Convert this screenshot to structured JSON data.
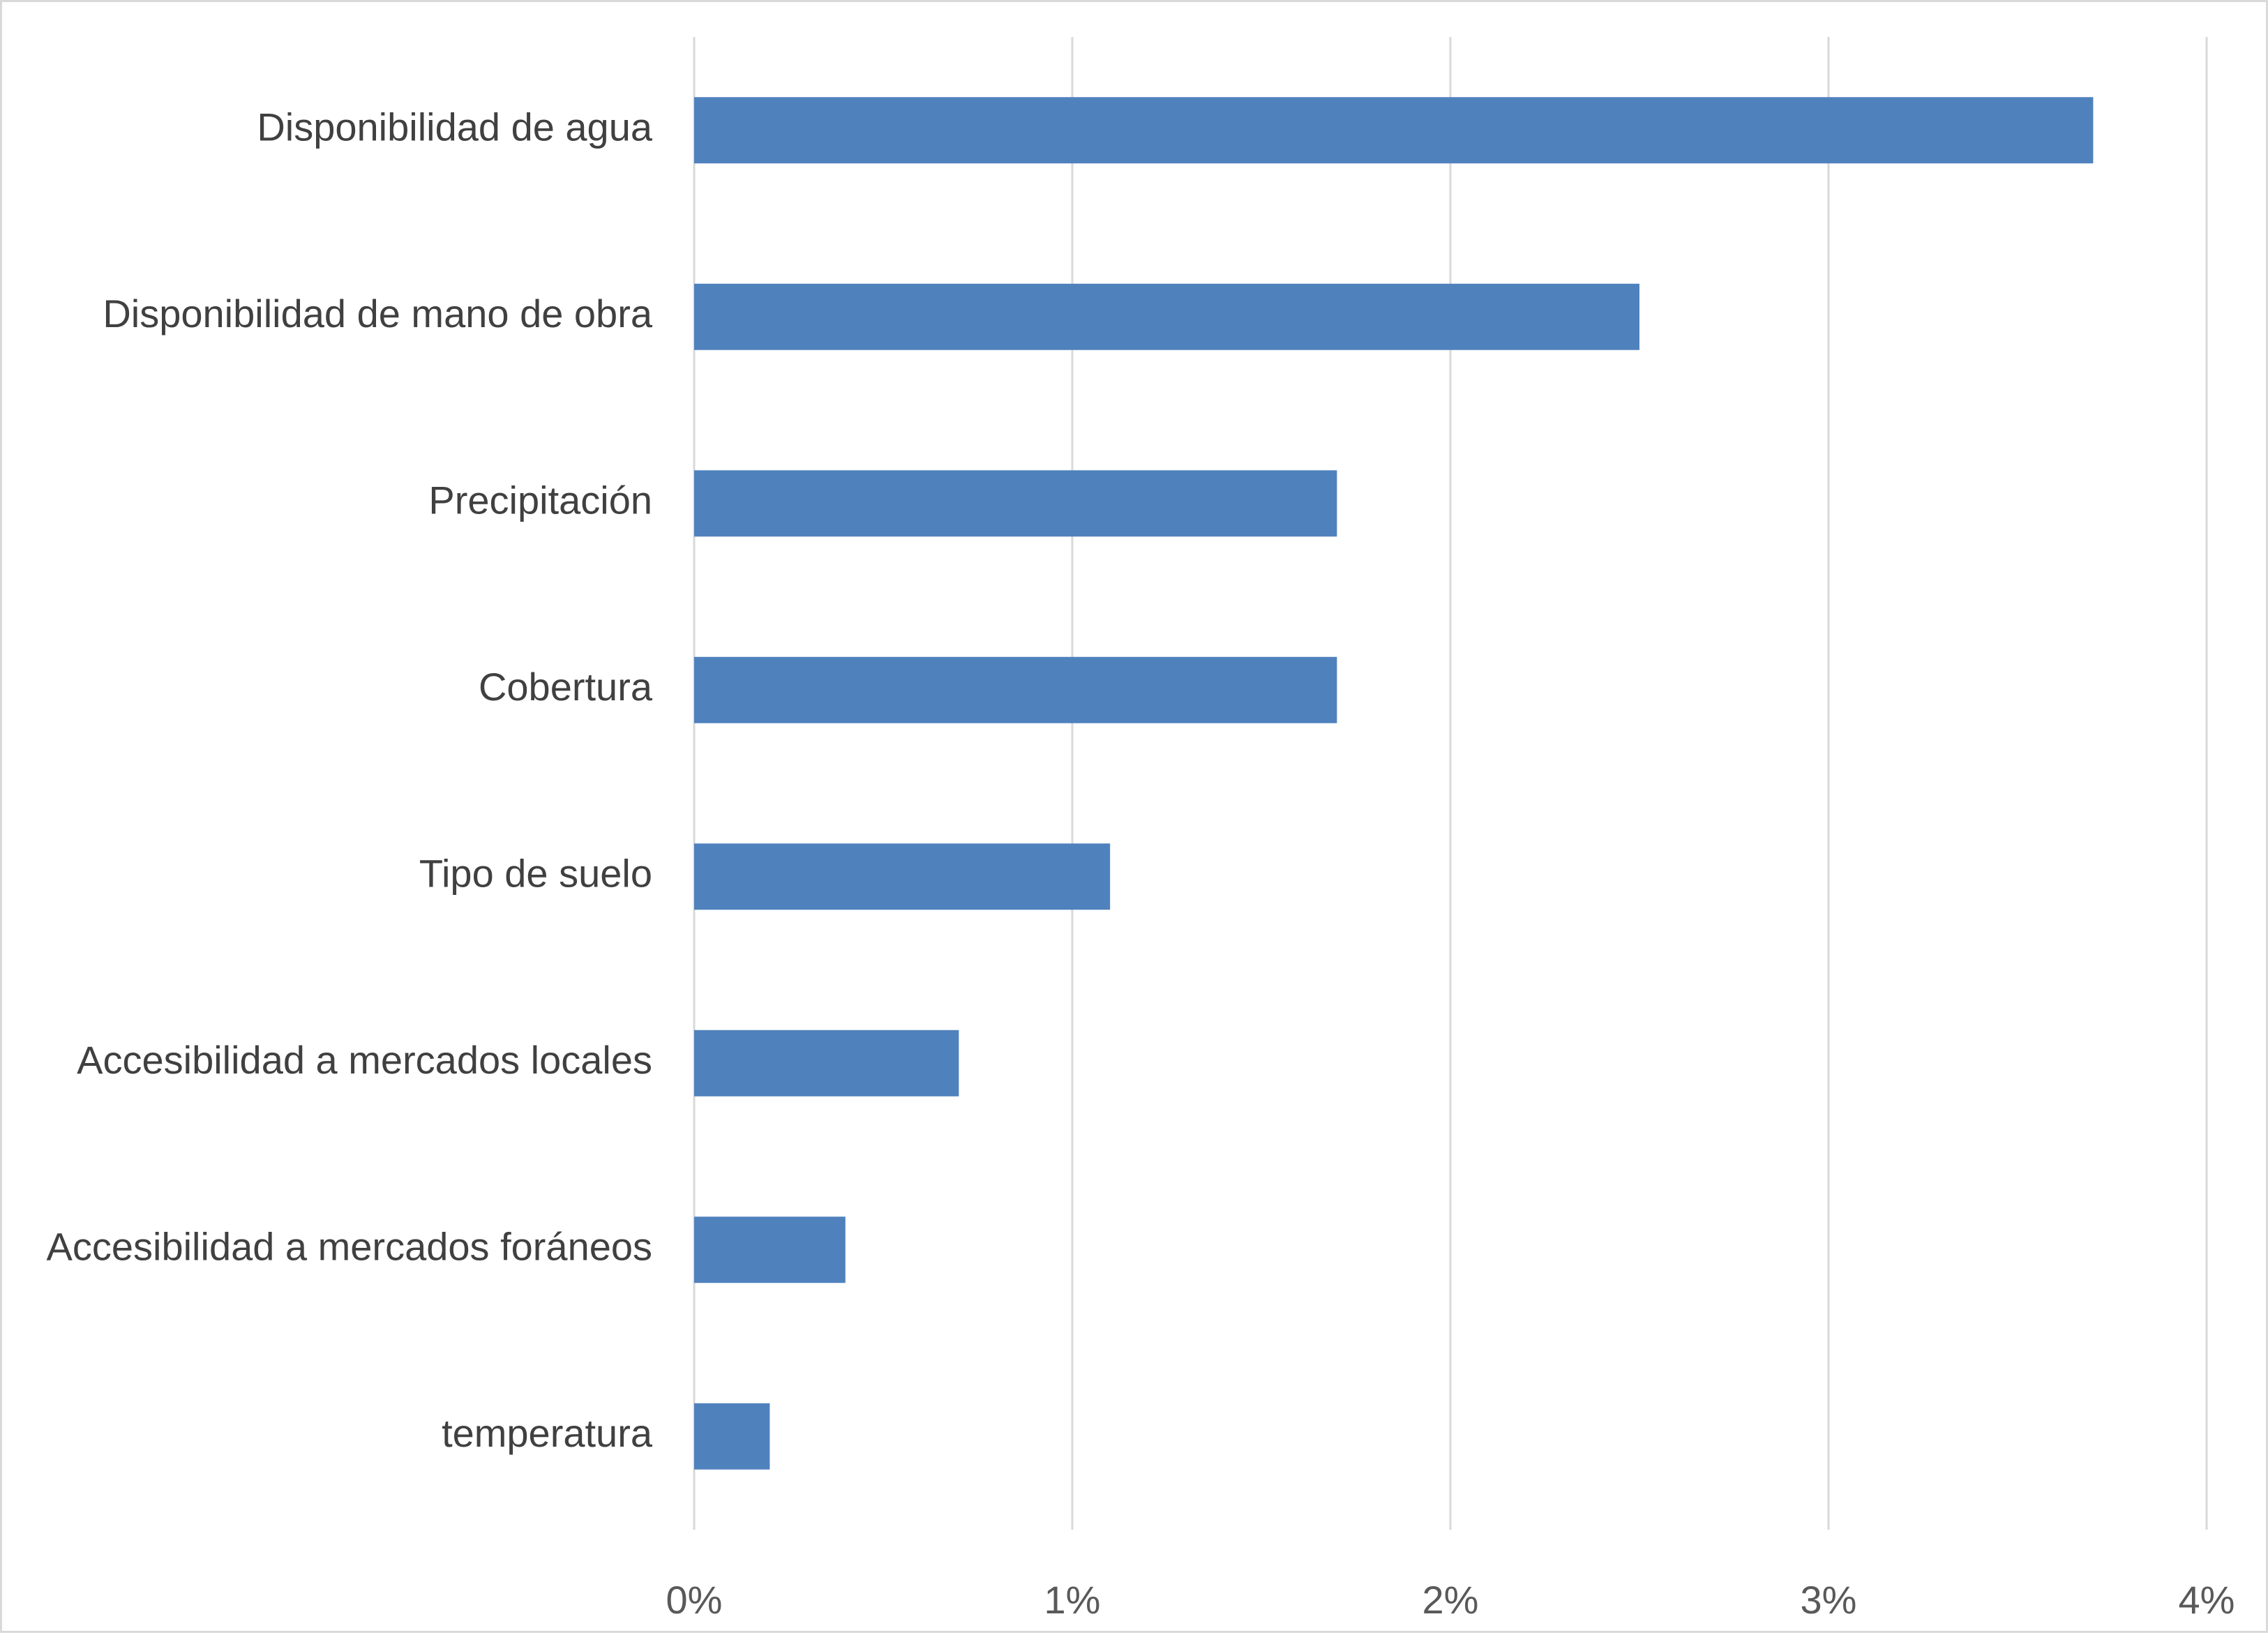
{
  "chart_data": {
    "type": "bar",
    "orientation": "horizontal",
    "categories": [
      "Disponibilidad de agua",
      "Disponibilidad de mano de obra",
      "Precipitación",
      "Cobertura",
      "Tipo de suelo",
      "Accesibilidad a mercados locales",
      "Accesibilidad a mercados foráneos",
      "temperatura"
    ],
    "values": [
      3.7,
      2.5,
      1.7,
      1.7,
      1.1,
      0.7,
      0.4,
      0.2
    ],
    "unit": "%",
    "title": "",
    "xlabel": "",
    "ylabel": "",
    "xlim": [
      0,
      4
    ],
    "x_ticks": [
      0,
      1,
      2,
      3,
      4
    ],
    "x_tick_labels": [
      "0%",
      "1%",
      "2%",
      "3%",
      "4%"
    ],
    "grid": true,
    "legend": "none",
    "colors": {
      "bar": "#4f81bd",
      "grid": "#d9d9d9",
      "border": "#d9d9d9",
      "category_text": "#404040",
      "tick_text": "#595959"
    }
  }
}
